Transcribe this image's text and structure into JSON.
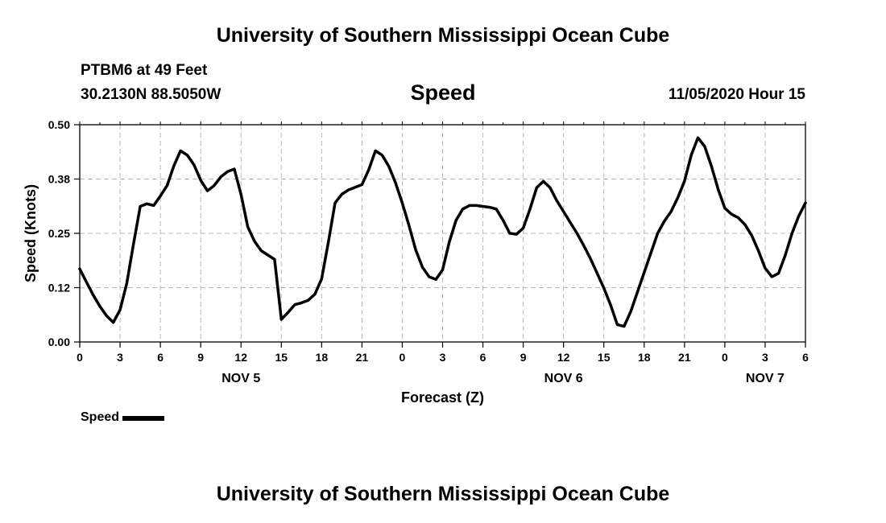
{
  "header": {
    "title": "University of Southern Mississippi Ocean Cube",
    "station": "PTBM6 at 49 Feet",
    "location": "30.2130N 88.5050W",
    "parameter": "Speed",
    "datetime": "11/05/2020 Hour 15"
  },
  "footer": {
    "title": "University of Southern Mississippi Ocean Cube"
  },
  "legend": {
    "label": "Speed"
  },
  "chart_data": {
    "type": "line",
    "title": "Speed",
    "xlabel": "Forecast (Z)",
    "ylabel": "Speed (Knots)",
    "xlim": [
      0,
      54
    ],
    "ylim": [
      0,
      0.5
    ],
    "grid": true,
    "yticks": [
      {
        "value": 0,
        "label": "0.00"
      },
      {
        "value": 0.125,
        "label": "0.12"
      },
      {
        "value": 0.25,
        "label": "0.25"
      },
      {
        "value": 0.375,
        "label": "0.38"
      },
      {
        "value": 0.5,
        "label": "0.50"
      }
    ],
    "xticks": [
      {
        "value": 0,
        "label": "0"
      },
      {
        "value": 3,
        "label": "3"
      },
      {
        "value": 6,
        "label": "6"
      },
      {
        "value": 9,
        "label": "9"
      },
      {
        "value": 12,
        "label": "12"
      },
      {
        "value": 15,
        "label": "15"
      },
      {
        "value": 18,
        "label": "18"
      },
      {
        "value": 21,
        "label": "21"
      },
      {
        "value": 24,
        "label": "0"
      },
      {
        "value": 27,
        "label": "3"
      },
      {
        "value": 30,
        "label": "6"
      },
      {
        "value": 33,
        "label": "9"
      },
      {
        "value": 36,
        "label": "12"
      },
      {
        "value": 39,
        "label": "15"
      },
      {
        "value": 42,
        "label": "18"
      },
      {
        "value": 45,
        "label": "21"
      },
      {
        "value": 48,
        "label": "0"
      },
      {
        "value": 51,
        "label": "3"
      },
      {
        "value": 54,
        "label": "6"
      }
    ],
    "day_labels": [
      {
        "value": 12,
        "label": "NOV 5"
      },
      {
        "value": 36,
        "label": "NOV 6"
      },
      {
        "value": 51,
        "label": "NOV 7"
      }
    ],
    "legend_position": "bottom-left",
    "series": [
      {
        "name": "Speed",
        "color": "#000000",
        "x": [
          0,
          0.5,
          1,
          1.5,
          2,
          2.5,
          3,
          3.5,
          4,
          4.5,
          5,
          5.5,
          6,
          6.5,
          7,
          7.5,
          8,
          8.5,
          9,
          9.5,
          10,
          10.5,
          11,
          11.5,
          12,
          12.5,
          13,
          13.5,
          14,
          14.5,
          15,
          15.5,
          16,
          16.5,
          17,
          17.5,
          18,
          18.5,
          19,
          19.5,
          20,
          20.5,
          21,
          21.5,
          22,
          22.5,
          23,
          23.5,
          24,
          24.5,
          25,
          25.5,
          26,
          26.5,
          27,
          27.5,
          28,
          28.5,
          29,
          29.5,
          30,
          30.5,
          31,
          31.5,
          32,
          32.5,
          33,
          33.5,
          34,
          34.5,
          35,
          35.5,
          36,
          36.5,
          37,
          37.5,
          38,
          38.5,
          39,
          39.5,
          40,
          40.5,
          41,
          41.5,
          42,
          42.5,
          43,
          43.5,
          44,
          44.5,
          45,
          45.5,
          46,
          46.5,
          47,
          47.5,
          48,
          48.5,
          49,
          49.5,
          50,
          50.5,
          51,
          51.5,
          52,
          52.5,
          53,
          53.5,
          54
        ],
        "values": [
          0.168,
          0.138,
          0.108,
          0.082,
          0.06,
          0.045,
          0.074,
          0.135,
          0.225,
          0.312,
          0.318,
          0.314,
          0.336,
          0.36,
          0.405,
          0.44,
          0.43,
          0.408,
          0.372,
          0.348,
          0.36,
          0.38,
          0.392,
          0.398,
          0.34,
          0.265,
          0.232,
          0.21,
          0.2,
          0.19,
          0.052,
          0.068,
          0.086,
          0.09,
          0.096,
          0.11,
          0.145,
          0.23,
          0.32,
          0.34,
          0.35,
          0.356,
          0.362,
          0.396,
          0.44,
          0.43,
          0.404,
          0.366,
          0.32,
          0.268,
          0.212,
          0.172,
          0.15,
          0.144,
          0.166,
          0.23,
          0.28,
          0.306,
          0.314,
          0.314,
          0.312,
          0.31,
          0.306,
          0.28,
          0.25,
          0.248,
          0.262,
          0.306,
          0.355,
          0.37,
          0.355,
          0.325,
          0.3,
          0.275,
          0.25,
          0.222,
          0.192,
          0.158,
          0.124,
          0.085,
          0.04,
          0.036,
          0.07,
          0.115,
          0.16,
          0.205,
          0.25,
          0.278,
          0.3,
          0.332,
          0.37,
          0.43,
          0.47,
          0.45,
          0.405,
          0.352,
          0.308,
          0.294,
          0.286,
          0.27,
          0.245,
          0.21,
          0.17,
          0.15,
          0.158,
          0.2,
          0.25,
          0.29,
          0.32
        ]
      }
    ]
  }
}
